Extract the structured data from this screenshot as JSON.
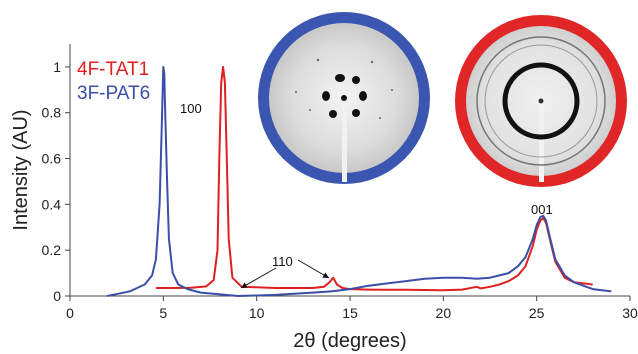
{
  "chart_data": {
    "type": "line",
    "xlabel": "2θ (degrees)",
    "ylabel": "Intensity (AU)",
    "xlim": [
      0,
      30
    ],
    "ylim": [
      0,
      1.1
    ],
    "x_ticks": [
      0,
      5,
      10,
      15,
      20,
      25,
      30
    ],
    "y_ticks": [
      0,
      0.2,
      0.4,
      0.6,
      0.8,
      1
    ],
    "y_tick_labels": [
      "0",
      "0.2",
      "0.4",
      "0.6",
      "0.8",
      "1"
    ],
    "grid": false,
    "legend_position": "top-left",
    "series": [
      {
        "name": "4F-TAT1",
        "color": "#e02020",
        "x": [
          4.6,
          5.5,
          6.5,
          7.3,
          7.7,
          7.9,
          8.0,
          8.1,
          8.2,
          8.3,
          8.4,
          8.5,
          8.7,
          9.2,
          10,
          11,
          12,
          13,
          13.6,
          13.9,
          14.1,
          14.3,
          14.6,
          15,
          16,
          17,
          18,
          19,
          20,
          21,
          21.8,
          22,
          22.5,
          23,
          23.5,
          24,
          24.4,
          24.8,
          25.0,
          25.2,
          25.35,
          25.5,
          25.7,
          26.0,
          26.5,
          27,
          28
        ],
        "y": [
          0.035,
          0.035,
          0.036,
          0.042,
          0.07,
          0.2,
          0.6,
          0.93,
          1.0,
          0.93,
          0.6,
          0.25,
          0.08,
          0.04,
          0.038,
          0.035,
          0.035,
          0.035,
          0.04,
          0.06,
          0.08,
          0.05,
          0.035,
          0.03,
          0.028,
          0.027,
          0.027,
          0.026,
          0.025,
          0.028,
          0.04,
          0.033,
          0.04,
          0.05,
          0.065,
          0.09,
          0.13,
          0.22,
          0.29,
          0.33,
          0.34,
          0.32,
          0.25,
          0.15,
          0.08,
          0.06,
          0.05
        ]
      },
      {
        "name": "3F-PAT6",
        "color": "#3a4fa8",
        "x": [
          2,
          2.6,
          3.2,
          4.0,
          4.4,
          4.6,
          4.8,
          4.9,
          5.0,
          5.05,
          5.1,
          5.2,
          5.3,
          5.5,
          5.8,
          6.3,
          7,
          8,
          9,
          10,
          11,
          12,
          13,
          14,
          15,
          16,
          17,
          18,
          19,
          20,
          21,
          21.8,
          22.5,
          23,
          23.5,
          24,
          24.4,
          24.8,
          25.0,
          25.2,
          25.35,
          25.5,
          25.7,
          26.0,
          26.5,
          27,
          28,
          29
        ],
        "y": [
          0.0,
          0.01,
          0.02,
          0.05,
          0.09,
          0.16,
          0.4,
          0.7,
          1.0,
          0.97,
          0.8,
          0.5,
          0.25,
          0.1,
          0.05,
          0.03,
          0.015,
          0.008,
          0.0,
          0.002,
          0.005,
          0.01,
          0.015,
          0.02,
          0.03,
          0.045,
          0.055,
          0.065,
          0.075,
          0.08,
          0.08,
          0.075,
          0.08,
          0.09,
          0.1,
          0.13,
          0.17,
          0.25,
          0.31,
          0.345,
          0.35,
          0.33,
          0.26,
          0.16,
          0.09,
          0.06,
          0.03,
          0.02
        ]
      }
    ],
    "annotations": {
      "peak_100": "100",
      "peak_110": "110",
      "peak_001": "001"
    }
  },
  "inset_images": [
    {
      "name": "blue-ring-diffraction-pattern",
      "ring_color": "#3a56b0"
    },
    {
      "name": "red-ring-diffraction-pattern",
      "ring_color": "#e02626"
    }
  ]
}
